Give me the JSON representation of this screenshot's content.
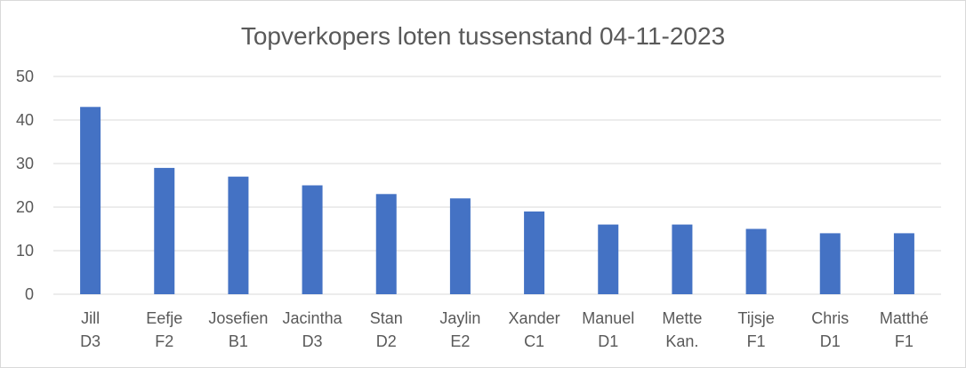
{
  "chart_data": {
    "type": "bar",
    "title": "Topverkopers loten tussenstand 04-11-2023",
    "xlabel": "",
    "ylabel": "",
    "ylim": [
      0,
      50
    ],
    "yticks": [
      0,
      10,
      20,
      30,
      40,
      50
    ],
    "yticks_labels": [
      "0",
      "10",
      "20",
      "30",
      "40",
      "50"
    ],
    "grid": true,
    "legend": "none",
    "bar_color": "#4472c4",
    "categories": [
      [
        "Jill",
        "D3"
      ],
      [
        "Eefje",
        "F2"
      ],
      [
        "Josefien",
        "B1"
      ],
      [
        "Jacintha",
        "D3"
      ],
      [
        "Stan",
        "D2"
      ],
      [
        "Jaylin",
        "E2"
      ],
      [
        "Xander",
        "C1"
      ],
      [
        "Manuel",
        "D1"
      ],
      [
        "Mette",
        "Kan."
      ],
      [
        "Tijsje",
        "F1"
      ],
      [
        "Chris",
        "D1"
      ],
      [
        "Matthé",
        "F1"
      ]
    ],
    "values": [
      43,
      29,
      27,
      25,
      23,
      22,
      19,
      16,
      16,
      15,
      14,
      14
    ]
  }
}
